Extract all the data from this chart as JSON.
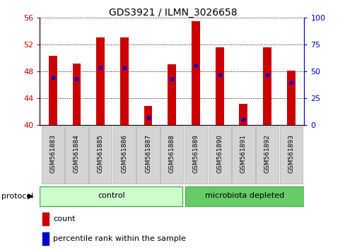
{
  "title": "GDS3921 / ILMN_3026658",
  "samples": [
    "GSM561883",
    "GSM561884",
    "GSM561885",
    "GSM561886",
    "GSM561887",
    "GSM561888",
    "GSM561889",
    "GSM561890",
    "GSM561891",
    "GSM561892",
    "GSM561893"
  ],
  "count_values": [
    50.3,
    49.1,
    53.0,
    53.0,
    42.8,
    49.0,
    55.5,
    51.6,
    43.2,
    51.6,
    48.1
  ],
  "percentile_values": [
    47.0,
    46.8,
    48.5,
    48.5,
    41.0,
    46.8,
    48.8,
    47.5,
    40.8,
    47.5,
    46.3
  ],
  "bar_color": "#cc0000",
  "marker_color": "#0000cc",
  "ylim_left": [
    40,
    56
  ],
  "ylim_right": [
    0,
    100
  ],
  "yticks_left": [
    40,
    44,
    48,
    52,
    56
  ],
  "yticks_right": [
    0,
    25,
    50,
    75,
    100
  ],
  "grid_style": "dotted",
  "control_color": "#ccffcc",
  "microbiota_color": "#66cc66",
  "protocol_label": "protocol",
  "control_label": "control",
  "microbiota_label": "microbiota depleted",
  "legend_count_label": "count",
  "legend_percentile_label": "percentile rank within the sample",
  "bar_width": 0.35,
  "tick_label_color_left": "#cc0000",
  "tick_label_color_right": "#0000cc",
  "background_color": "#ffffff",
  "n_control": 6,
  "n_microbiota": 5
}
